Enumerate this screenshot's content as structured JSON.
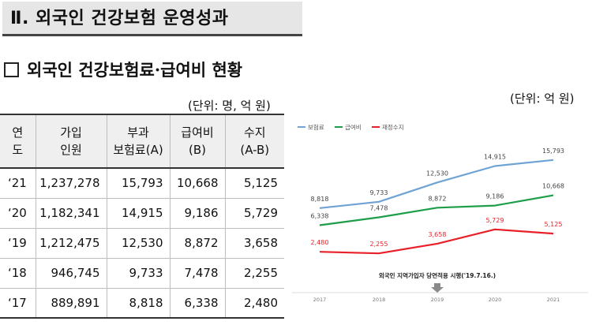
{
  "section_title": "Ⅱ. 외국인 건강보험 운영성과",
  "subsection_title": "외국인 건강보험료·급여비 현황",
  "table_unit": "(단위: 명, 억 원)",
  "table": {
    "headers": [
      "연\n도",
      "가입\n인원",
      "부과\n보험료(A)",
      "급여비\n(B)",
      "수지\n(A-B)"
    ],
    "rows": [
      [
        "‘21",
        "1,237,278",
        "15,793",
        "10,668",
        "5,125"
      ],
      [
        "‘20",
        "1,182,341",
        "14,915",
        "9,186",
        "5,729"
      ],
      [
        "‘19",
        "1,212,475",
        "12,530",
        "8,872",
        "3,658"
      ],
      [
        "‘18",
        "946,745",
        "9,733",
        "7,478",
        "2,255"
      ],
      [
        "‘17",
        "889,891",
        "8,818",
        "6,338",
        "2,480"
      ]
    ]
  },
  "chart_unit": "(단위: 억 원)",
  "annotation_text": "외국인 지역가입자 당연적용 시행('19.7.16.)",
  "chart_data": {
    "type": "line",
    "x": [
      "2017",
      "2018",
      "2019",
      "2020",
      "2021"
    ],
    "series": [
      {
        "name": "보험료",
        "color": "#6fa3d4",
        "values": [
          8818,
          9733,
          12530,
          14915,
          15793
        ],
        "labels": [
          "8,818",
          "9,733",
          "12,530",
          "14,915",
          "15,793"
        ]
      },
      {
        "name": "급여비",
        "color": "#1f9e4a",
        "values": [
          6338,
          7478,
          8872,
          9186,
          10668
        ],
        "labels": [
          "6,338",
          "7,478",
          "8,872",
          "9,186",
          "10,668"
        ]
      },
      {
        "name": "재정수지",
        "color": "#e8202a",
        "values": [
          2480,
          2255,
          3658,
          5729,
          5125
        ],
        "labels": [
          "2,480",
          "2,255",
          "3,658",
          "5,729",
          "5,125"
        ]
      }
    ],
    "legend_position": "top-left",
    "grid": false
  }
}
